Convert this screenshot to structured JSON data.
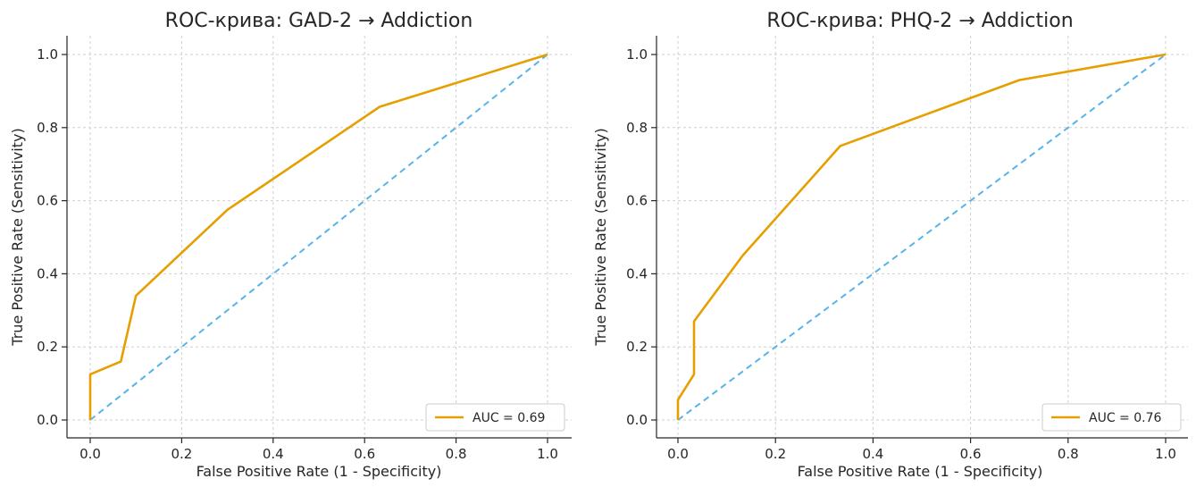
{
  "colors": {
    "roc": "#E69F00",
    "diag": "#56B4E9",
    "grid": "#cfcfcf",
    "text": "#262626"
  },
  "chart_data": [
    {
      "type": "line",
      "title": "ROC-крива: GAD-2 → Addiction",
      "xlabel": "False Positive Rate (1 - Specificity)",
      "ylabel": "True Positive Rate (Sensitivity)",
      "xlim": [
        0,
        1
      ],
      "ylim": [
        0,
        1
      ],
      "x_ticks": [
        "0.0",
        "0.2",
        "0.4",
        "0.6",
        "0.8",
        "1.0"
      ],
      "y_ticks": [
        "0.0",
        "0.2",
        "0.4",
        "0.6",
        "0.8",
        "1.0"
      ],
      "grid": true,
      "legend_position": "lower-right",
      "series": [
        {
          "name": "AUC = 0.69",
          "style": "solid",
          "color": "#E69F00",
          "x": [
            0.0,
            0.0,
            0.067,
            0.1,
            0.3,
            0.633,
            1.0
          ],
          "y": [
            0.0,
            0.125,
            0.16,
            0.34,
            0.575,
            0.857,
            1.0
          ]
        },
        {
          "style": "dashed",
          "color": "#56B4E9",
          "x": [
            0,
            1
          ],
          "y": [
            0,
            1
          ]
        }
      ]
    },
    {
      "type": "line",
      "title": "ROC-крива: PHQ-2 → Addiction",
      "xlabel": "False Positive Rate (1 - Specificity)",
      "ylabel": "True Positive Rate (Sensitivity)",
      "xlim": [
        0,
        1
      ],
      "ylim": [
        0,
        1
      ],
      "x_ticks": [
        "0.0",
        "0.2",
        "0.4",
        "0.6",
        "0.8",
        "1.0"
      ],
      "y_ticks": [
        "0.0",
        "0.2",
        "0.4",
        "0.6",
        "0.8",
        "1.0"
      ],
      "grid": true,
      "legend_position": "lower-right",
      "series": [
        {
          "name": "AUC = 0.76",
          "style": "solid",
          "color": "#E69F00",
          "x": [
            0.0,
            0.0,
            0.033,
            0.033,
            0.133,
            0.333,
            0.7,
            1.0
          ],
          "y": [
            0.0,
            0.055,
            0.125,
            0.27,
            0.45,
            0.75,
            0.93,
            1.0
          ]
        },
        {
          "style": "dashed",
          "color": "#56B4E9",
          "x": [
            0,
            1
          ],
          "y": [
            0,
            1
          ]
        }
      ]
    }
  ]
}
